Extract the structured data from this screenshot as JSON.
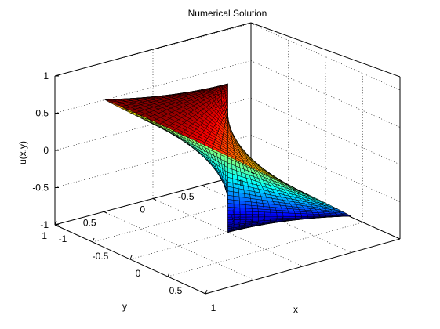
{
  "chart_data": {
    "type": "surface",
    "title": "Numerical Solution",
    "xlabel": "x",
    "ylabel": "y",
    "zlabel": "u(x,y)",
    "xlim": [
      -1,
      1
    ],
    "ylim": [
      -1,
      1
    ],
    "zlim": [
      -1,
      1
    ],
    "x_ticks": [
      "-1",
      "-0.5",
      "0",
      "0.5",
      "1"
    ],
    "y_ticks": [
      "-1",
      "-0.5",
      "0",
      "0.5",
      "1"
    ],
    "z_ticks": [
      "-1",
      "-0.5",
      "0",
      "0.5",
      "1"
    ],
    "domain": "unit disk",
    "colormap": "jet",
    "grid": true,
    "surface_function": "u(r,theta) = sin(theta)",
    "radial_mesh_lines": 20,
    "angular_mesh_lines": 96
  }
}
